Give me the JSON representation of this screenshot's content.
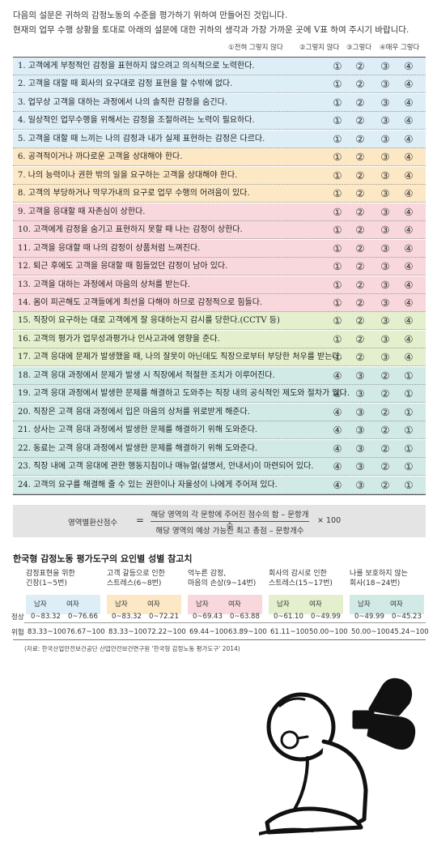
{
  "intro": {
    "line1": "다음의 설문은 귀하의 감정노동의 수준을 평가하기 위하여 만들어진 것입니다.",
    "line2": "현재의 업무 수행 상황을 토대로 아래의 설문에 대한 귀하의 생각과 가장 가까운 곳에 V표 하여 주시기 바랍니다."
  },
  "scale": [
    "①전혀 그렇지 않다",
    "②그렇지 않다",
    "③그렇다",
    "④매우 그렇다"
  ],
  "questions": [
    {
      "text": "1. 고객에게 부정적인 감정을 표현하지 않으려고 의식적으로 노력한다.",
      "opts": [
        "①",
        "②",
        "③",
        "④"
      ]
    },
    {
      "text": "2. 고객을 대할 때 회사의 요구대로 감정 표현을 할 수밖에 없다.",
      "opts": [
        "①",
        "②",
        "③",
        "④"
      ]
    },
    {
      "text": "3. 업무상 고객을 대하는 과정에서 나의 솔직한 감정을 숨긴다.",
      "opts": [
        "①",
        "②",
        "③",
        "④"
      ]
    },
    {
      "text": "4. 일상적인 업무수행을 위해서는 감정을 조절하려는 노력이 필요하다.",
      "opts": [
        "①",
        "②",
        "③",
        "④"
      ]
    },
    {
      "text": "5. 고객을 대할 때 느끼는 나의 감정과 내가 실제 표현하는 감정은 다르다.",
      "opts": [
        "①",
        "②",
        "③",
        "④"
      ]
    },
    {
      "text": "6. 공격적이거나 까다로운 고객을 상대해야 한다.",
      "opts": [
        "①",
        "②",
        "③",
        "④"
      ]
    },
    {
      "text": "7. 나의 능력이나 권한 밖의 일을 요구하는 고객을 상대해야 한다.",
      "opts": [
        "①",
        "②",
        "③",
        "④"
      ]
    },
    {
      "text": "8. 고객의 부당하거나 막무가내의 요구로 업무 수행의 어려움이 있다.",
      "opts": [
        "①",
        "②",
        "③",
        "④"
      ]
    },
    {
      "text": "9. 고객을 응대할 때 자존심이 상한다.",
      "opts": [
        "①",
        "②",
        "③",
        "④"
      ]
    },
    {
      "text": "10. 고객에게 감정을 숨기고 표현하지 못할 때 나는 감정이 상한다.",
      "opts": [
        "①",
        "②",
        "③",
        "④"
      ]
    },
    {
      "text": "11. 고객을 응대할 때 나의 감정이 상품처럼 느껴진다.",
      "opts": [
        "①",
        "②",
        "③",
        "④"
      ]
    },
    {
      "text": "12. 퇴근 후에도 고객을 응대할 때 힘들었던 감정이 남아 있다.",
      "opts": [
        "①",
        "②",
        "③",
        "④"
      ]
    },
    {
      "text": "13. 고객을 대하는 과정에서 마음의 상처를 받는다.",
      "opts": [
        "①",
        "②",
        "③",
        "④"
      ]
    },
    {
      "text": "14. 몸이 피곤해도 고객들에게 최선을 다해야 하므로 감정적으로 힘들다.",
      "opts": [
        "①",
        "②",
        "③",
        "④"
      ]
    },
    {
      "text": "15. 직장이 요구하는 대로 고객에게 잘 응대하는지 감시를 당한다.(CCTV 등)",
      "opts": [
        "①",
        "②",
        "③",
        "④"
      ]
    },
    {
      "text": "16. 고객의 평가가 업무성과평가나 인사고과에 영향을 준다.",
      "opts": [
        "①",
        "②",
        "③",
        "④"
      ]
    },
    {
      "text": "17. 고객 응대에 문제가 발생했을 때, 나의 잘못이 아닌데도 직장으로부터 부당한 처우를 받는다.",
      "opts": [
        "①",
        "②",
        "③",
        "④"
      ]
    },
    {
      "text": "18. 고객 응대 과정에서 문제가 발생 시 직장에서 적절한 조치가 이루어진다.",
      "opts": [
        "④",
        "③",
        "②",
        "①"
      ]
    },
    {
      "text": "19. 고객 응대 과정에서 발생한 문제를 해결하고 도와주는 직장 내의 공식적인 제도와 절차가 있다.",
      "opts": [
        "④",
        "③",
        "②",
        "①"
      ]
    },
    {
      "text": "20. 직장은 고객 응대 과정에서 입은 마음의 상처를 위로받게 해준다.",
      "opts": [
        "④",
        "③",
        "②",
        "①"
      ]
    },
    {
      "text": "21. 상사는 고객 응대 과정에서 발생한 문제를 해결하기 위해 도와준다.",
      "opts": [
        "④",
        "③",
        "②",
        "①"
      ]
    },
    {
      "text": "22. 동료는 고객 응대 과정에서 발생한 문제를 해결하기 위해 도와준다.",
      "opts": [
        "④",
        "③",
        "②",
        "①"
      ]
    },
    {
      "text": "23. 직장 내에 고객 응대에 관한 행동지침이나 매뉴얼(설명서, 안내서)이 마련되어 있다.",
      "opts": [
        "④",
        "③",
        "②",
        "①"
      ]
    },
    {
      "text": "24. 고객의 요구를 해결해 줄 수 있는 권한이나 자율성이 나에게 주어져 있다.",
      "opts": [
        "④",
        "③",
        "②",
        "①"
      ]
    }
  ],
  "formula": {
    "lhs": "영역별환산점수",
    "eq": "=",
    "numerator": "해당 영역의 각 문항에 주어진 점수의 합 – 문항개수",
    "denominator": "해당 영역의 예상 가능한 최고 총점 – 문항개수",
    "multiplier": "× 100"
  },
  "reference": {
    "title": "한국형 감정노동 평가도구의 요인별 성별 참고치",
    "male": "남자",
    "female": "여자",
    "row_normal": "정상",
    "row_risk": "위험",
    "categories": [
      {
        "line1": "감정표현을 위한",
        "line2": "긴장(1~5번)",
        "normal_m": "0~83.32",
        "normal_f": "0~76.66",
        "risk_m": "83.33~100",
        "risk_f": "76.67~100"
      },
      {
        "line1": "고객 갈등으로 인한",
        "line2": "스트레스(6~8번)",
        "normal_m": "0~83.32",
        "normal_f": "0~72.21",
        "risk_m": "83.33~100",
        "risk_f": "72.22~100"
      },
      {
        "line1": "억누른 감정,",
        "line2": "마음의 손상(9~14번)",
        "normal_m": "0~69.43",
        "normal_f": "0~63.88",
        "risk_m": "69.44~100",
        "risk_f": "63.89~100"
      },
      {
        "line1": "회사의 감시로 인한",
        "line2": "스트레스(15~17번)",
        "normal_m": "0~61.10",
        "normal_f": "0~49.99",
        "risk_m": "61.11~100",
        "risk_f": "50.00~100"
      },
      {
        "line1": "나를 보호하지 않는",
        "line2": "회사(18~24번)",
        "normal_m": "0~49.99",
        "normal_f": "0~45.23",
        "risk_m": "50.00~100",
        "risk_f": "45.24~100"
      }
    ]
  },
  "source": "(자료: 한국산업안전보건공단 산업안전보건연구원 '한국형 감정노동 평가도구' 2014)",
  "colors": {
    "blue": "#ddeef7",
    "orange": "#fde8c6",
    "pink": "#f8d8dc",
    "green": "#e3efcd",
    "teal": "#d2eae6"
  },
  "illustration": "wind-up-figure-icon"
}
